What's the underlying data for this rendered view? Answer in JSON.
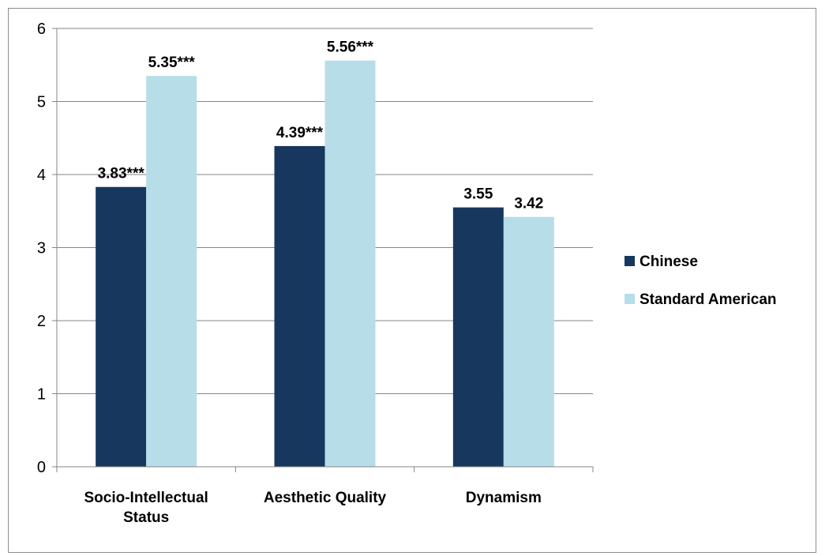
{
  "chart_data": {
    "type": "bar",
    "title": "",
    "xlabel": "",
    "ylabel": "",
    "categories": [
      "Socio-Intellectual Status",
      "Aesthetic Quality",
      "Dynamism"
    ],
    "category_lines": [
      [
        "Socio-Intellectual",
        "Status"
      ],
      [
        "Aesthetic Quality"
      ],
      [
        "Dynamism"
      ]
    ],
    "series": [
      {
        "name": "Chinese",
        "color": "#17375e",
        "values": [
          3.83,
          4.39,
          3.55
        ],
        "labels": [
          "3.83***",
          "4.39***",
          "3.55"
        ]
      },
      {
        "name": "Standard American",
        "color": "#b7dde8",
        "values": [
          5.35,
          5.56,
          3.42
        ],
        "labels": [
          "5.35***",
          "5.56***",
          "3.42"
        ]
      }
    ],
    "ylim": [
      0,
      6
    ],
    "yticks": [
      "0",
      "1",
      "2",
      "3",
      "4",
      "5",
      "6"
    ],
    "grid": true,
    "legend_position": "right"
  }
}
